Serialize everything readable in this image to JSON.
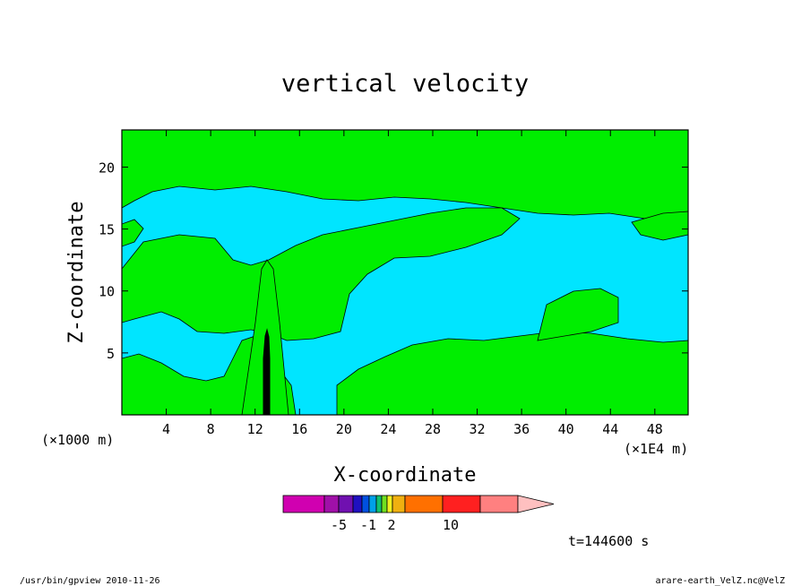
{
  "chart_data": {
    "type": "heatmap",
    "title": "vertical velocity",
    "xlabel": "X-coordinate",
    "ylabel": "Z-coordinate",
    "x_scale_note": "(×1000 m)",
    "x_unit_note": "(×1E4 m)",
    "xlim": [
      0,
      51
    ],
    "ylim": [
      0,
      23
    ],
    "x_ticks": [
      4,
      8,
      12,
      16,
      20,
      24,
      28,
      32,
      36,
      40,
      44,
      48
    ],
    "y_ticks": [
      5,
      10,
      15,
      20
    ],
    "grid": false,
    "legend": "colorbar-bottom",
    "colorbar": {
      "colors": [
        "#d000b0",
        "#a010a8",
        "#7010b0",
        "#2010c0",
        "#0050e0",
        "#00a0e8",
        "#10c070",
        "#70e020",
        "#f0f020",
        "#f0b010",
        "#ff7000",
        "#ff2020",
        "#ff8080",
        "#ffc0c0"
      ],
      "labels": [
        "-5",
        "-1",
        "2",
        "10"
      ]
    },
    "fill_colors": {
      "negative": "#00e5ff",
      "positive": "#00ee00"
    },
    "time_label": "t=144600 s"
  },
  "footer": {
    "left": "/usr/bin/gpview 2010-11-26",
    "right": "arare-earth_VelZ.nc@VelZ"
  }
}
